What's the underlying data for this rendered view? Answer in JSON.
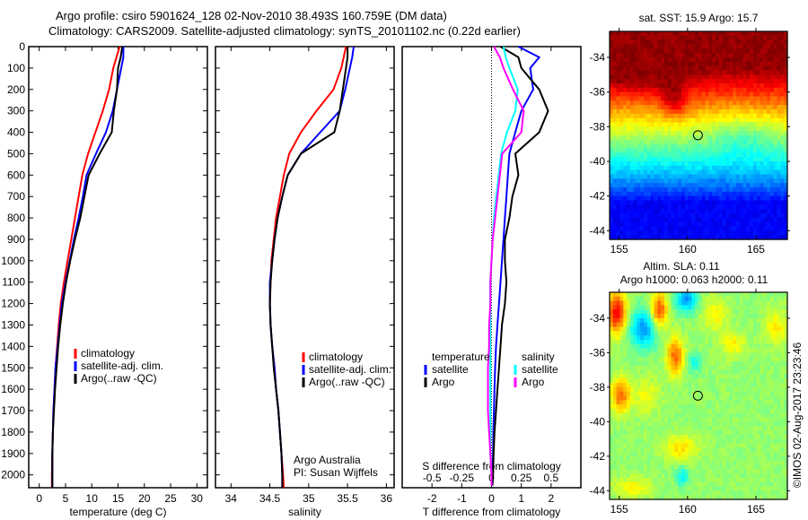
{
  "header": {
    "line1": "Argo profile: csiro 5901624_128 02-Nov-2010 38.493S 160.759E (DM data)",
    "line2": "Climatology: CARS2009. Satellite-adjusted climatology: synTS_20101102.nc (0.22d earlier)"
  },
  "colors": {
    "climatology": "#ff0000",
    "satellite": "#0000ff",
    "argo": "#000000",
    "salinity_satellite": "#00ffff",
    "salinity_argo": "#ff00ff"
  },
  "credit": "©IMOS 02-Aug-2017 23:23:46",
  "chart_data": [
    {
      "type": "line",
      "id": "temperature",
      "xlabel": "temperature (deg C)",
      "ylabel": "",
      "xlim": [
        -2,
        32
      ],
      "ylim": [
        2060,
        0
      ],
      "xticks": [
        0,
        5,
        10,
        15,
        20,
        25,
        30
      ],
      "yticks": [
        0,
        100,
        200,
        300,
        400,
        500,
        600,
        700,
        800,
        900,
        1000,
        1100,
        1200,
        1300,
        1400,
        1500,
        1600,
        1700,
        1800,
        1900,
        2000
      ],
      "legend": [
        "climatology",
        "satellite-adj. clim.",
        "Argo(..raw -QC)"
      ],
      "legend_position": "middle-left",
      "depth": [
        0,
        50,
        100,
        200,
        300,
        400,
        500,
        600,
        700,
        800,
        900,
        1000,
        1100,
        1200,
        1300,
        1400,
        1500,
        1600,
        1700,
        1800,
        1900,
        2000,
        2060
      ],
      "series": [
        {
          "name": "climatology",
          "values": [
            15.3,
            14.7,
            14.1,
            13.3,
            12.1,
            10.7,
            9.3,
            8.2,
            7.5,
            6.8,
            6.1,
            5.4,
            4.7,
            4.1,
            3.7,
            3.4,
            3.1,
            2.9,
            2.7,
            2.6,
            2.5,
            2.4,
            2.4
          ]
        },
        {
          "name": "satellite-adj. clim.",
          "values": [
            16.0,
            16.0,
            15.6,
            14.8,
            14.0,
            12.7,
            10.8,
            9.0,
            8.3,
            7.5,
            6.6,
            5.8,
            5.0,
            4.3,
            3.9,
            3.5,
            3.1,
            2.9,
            2.7,
            2.6,
            2.5,
            2.5,
            2.5
          ]
        },
        {
          "name": "Argo",
          "values": [
            15.8,
            15.5,
            15.0,
            14.8,
            14.2,
            13.8,
            11.5,
            9.4,
            8.6,
            7.8,
            6.8,
            5.9,
            5.1,
            4.5,
            4.0,
            3.6,
            3.3,
            3.0,
            2.8,
            2.6,
            2.5,
            2.5,
            2.5
          ]
        }
      ]
    },
    {
      "type": "line",
      "id": "salinity",
      "xlabel": "salinity",
      "xlim": [
        33.8,
        36.1
      ],
      "ylim": [
        2060,
        0
      ],
      "xticks": [
        34,
        34.5,
        35,
        35.5,
        36
      ],
      "legend": [
        "climatology",
        "satellite-adj. clim.",
        "Argo(..raw -QC)"
      ],
      "legend_position": "middle-right",
      "annotation": [
        "Argo Australia",
        "PI: Susan Wijffels"
      ],
      "depth": [
        0,
        50,
        100,
        200,
        300,
        400,
        500,
        600,
        700,
        800,
        900,
        1000,
        1100,
        1200,
        1300,
        1400,
        1500,
        1600,
        1700,
        1800,
        1900,
        2000,
        2060
      ],
      "series": [
        {
          "name": "climatology",
          "values": [
            35.48,
            35.45,
            35.42,
            35.32,
            35.1,
            34.9,
            34.75,
            34.68,
            34.63,
            34.58,
            34.55,
            34.52,
            34.51,
            34.5,
            34.51,
            34.53,
            34.56,
            34.58,
            34.61,
            34.63,
            34.65,
            34.67,
            34.68
          ]
        },
        {
          "name": "satellite-adj. clim.",
          "values": [
            35.58,
            35.56,
            35.53,
            35.47,
            35.4,
            35.15,
            34.9,
            34.73,
            34.66,
            34.6,
            34.56,
            34.53,
            34.5,
            34.5,
            34.51,
            34.53,
            34.56,
            34.58,
            34.61,
            34.63,
            34.65,
            34.66,
            34.66
          ]
        },
        {
          "name": "Argo",
          "values": [
            35.5,
            35.5,
            35.48,
            35.44,
            35.4,
            35.33,
            34.9,
            34.73,
            34.66,
            34.6,
            34.56,
            34.53,
            34.51,
            34.5,
            34.51,
            34.53,
            34.55,
            34.58,
            34.61,
            34.63,
            34.65,
            34.66,
            34.66
          ]
        }
      ]
    },
    {
      "type": "line",
      "id": "differences",
      "xlabel": "T difference from climatology",
      "xlabel_top": "S difference from climatology",
      "xlim": [
        -3,
        3
      ],
      "ylim": [
        2060,
        0
      ],
      "xticks": [
        -2,
        -1,
        0,
        1,
        2
      ],
      "xticks_salinity": [
        -0.5,
        -0.25,
        0,
        0.25,
        0.5
      ],
      "legend_groups": [
        {
          "title": "temperature",
          "items": [
            "satellite",
            "Argo"
          ]
        },
        {
          "title": "salinity",
          "items": [
            "satellite",
            "Argo"
          ]
        }
      ],
      "depth": [
        0,
        50,
        100,
        200,
        300,
        400,
        500,
        600,
        700,
        800,
        900,
        1000,
        1100,
        1200,
        1300,
        1400,
        1500,
        1600,
        1700,
        1800,
        1900,
        2000,
        2050
      ],
      "series": [
        {
          "name": "T satellite",
          "values": [
            0.9,
            1.6,
            1.3,
            1.4,
            1.0,
            0.8,
            0.6,
            0.55,
            0.5,
            0.45,
            0.4,
            0.35,
            0.3,
            0.25,
            0.2,
            0.15,
            0.12,
            0.1,
            0.08,
            0.06,
            0.05,
            0.04,
            0.03
          ]
        },
        {
          "name": "T Argo",
          "values": [
            0.3,
            0.9,
            1.0,
            1.6,
            1.9,
            1.6,
            0.8,
            0.9,
            0.7,
            0.6,
            0.45,
            0.45,
            0.5,
            0.45,
            0.35,
            0.3,
            0.25,
            0.2,
            0.15,
            0.1,
            0.07,
            0.05,
            0.03
          ]
        },
        {
          "name": "S satellite",
          "values": [
            0.1,
            0.12,
            0.15,
            0.22,
            0.2,
            0.13,
            0.08,
            0.06,
            0.04,
            0.02,
            0.01,
            0.0,
            -0.01,
            -0.01,
            -0.01,
            -0.01,
            -0.01,
            -0.01,
            -0.01,
            -0.01,
            -0.01,
            0.0,
            0.0
          ]
        },
        {
          "name": "S Argo",
          "values": [
            0.02,
            0.07,
            0.1,
            0.18,
            0.27,
            0.25,
            0.09,
            0.07,
            0.05,
            0.03,
            0.01,
            0.0,
            -0.01,
            -0.01,
            -0.02,
            -0.02,
            -0.03,
            -0.03,
            -0.03,
            -0.02,
            -0.01,
            0.0,
            0.0
          ]
        }
      ]
    },
    {
      "type": "heatmap",
      "id": "sst-map",
      "title": "sat. SST: 15.9 Argo: 15.7",
      "xlim": [
        154.3,
        167.3
      ],
      "ylim": [
        -44.5,
        -32.5
      ],
      "xticks": [
        155,
        160,
        165
      ],
      "yticks": [
        -34,
        -36,
        -38,
        -40,
        -42,
        -44
      ],
      "marker": {
        "lon": 160.759,
        "lat": -38.493
      }
    },
    {
      "type": "heatmap",
      "id": "sla-map",
      "title": "Altim. SLA: 0.11",
      "subtitle": "Argo h1000: 0.063 h2000: 0.11",
      "xlim": [
        154.3,
        167.3
      ],
      "ylim": [
        -44.5,
        -32.5
      ],
      "xticks": [
        155,
        160,
        165
      ],
      "yticks": [
        -34,
        -36,
        -38,
        -40,
        -42,
        -44
      ],
      "marker": {
        "lon": 160.759,
        "lat": -38.493
      }
    }
  ]
}
